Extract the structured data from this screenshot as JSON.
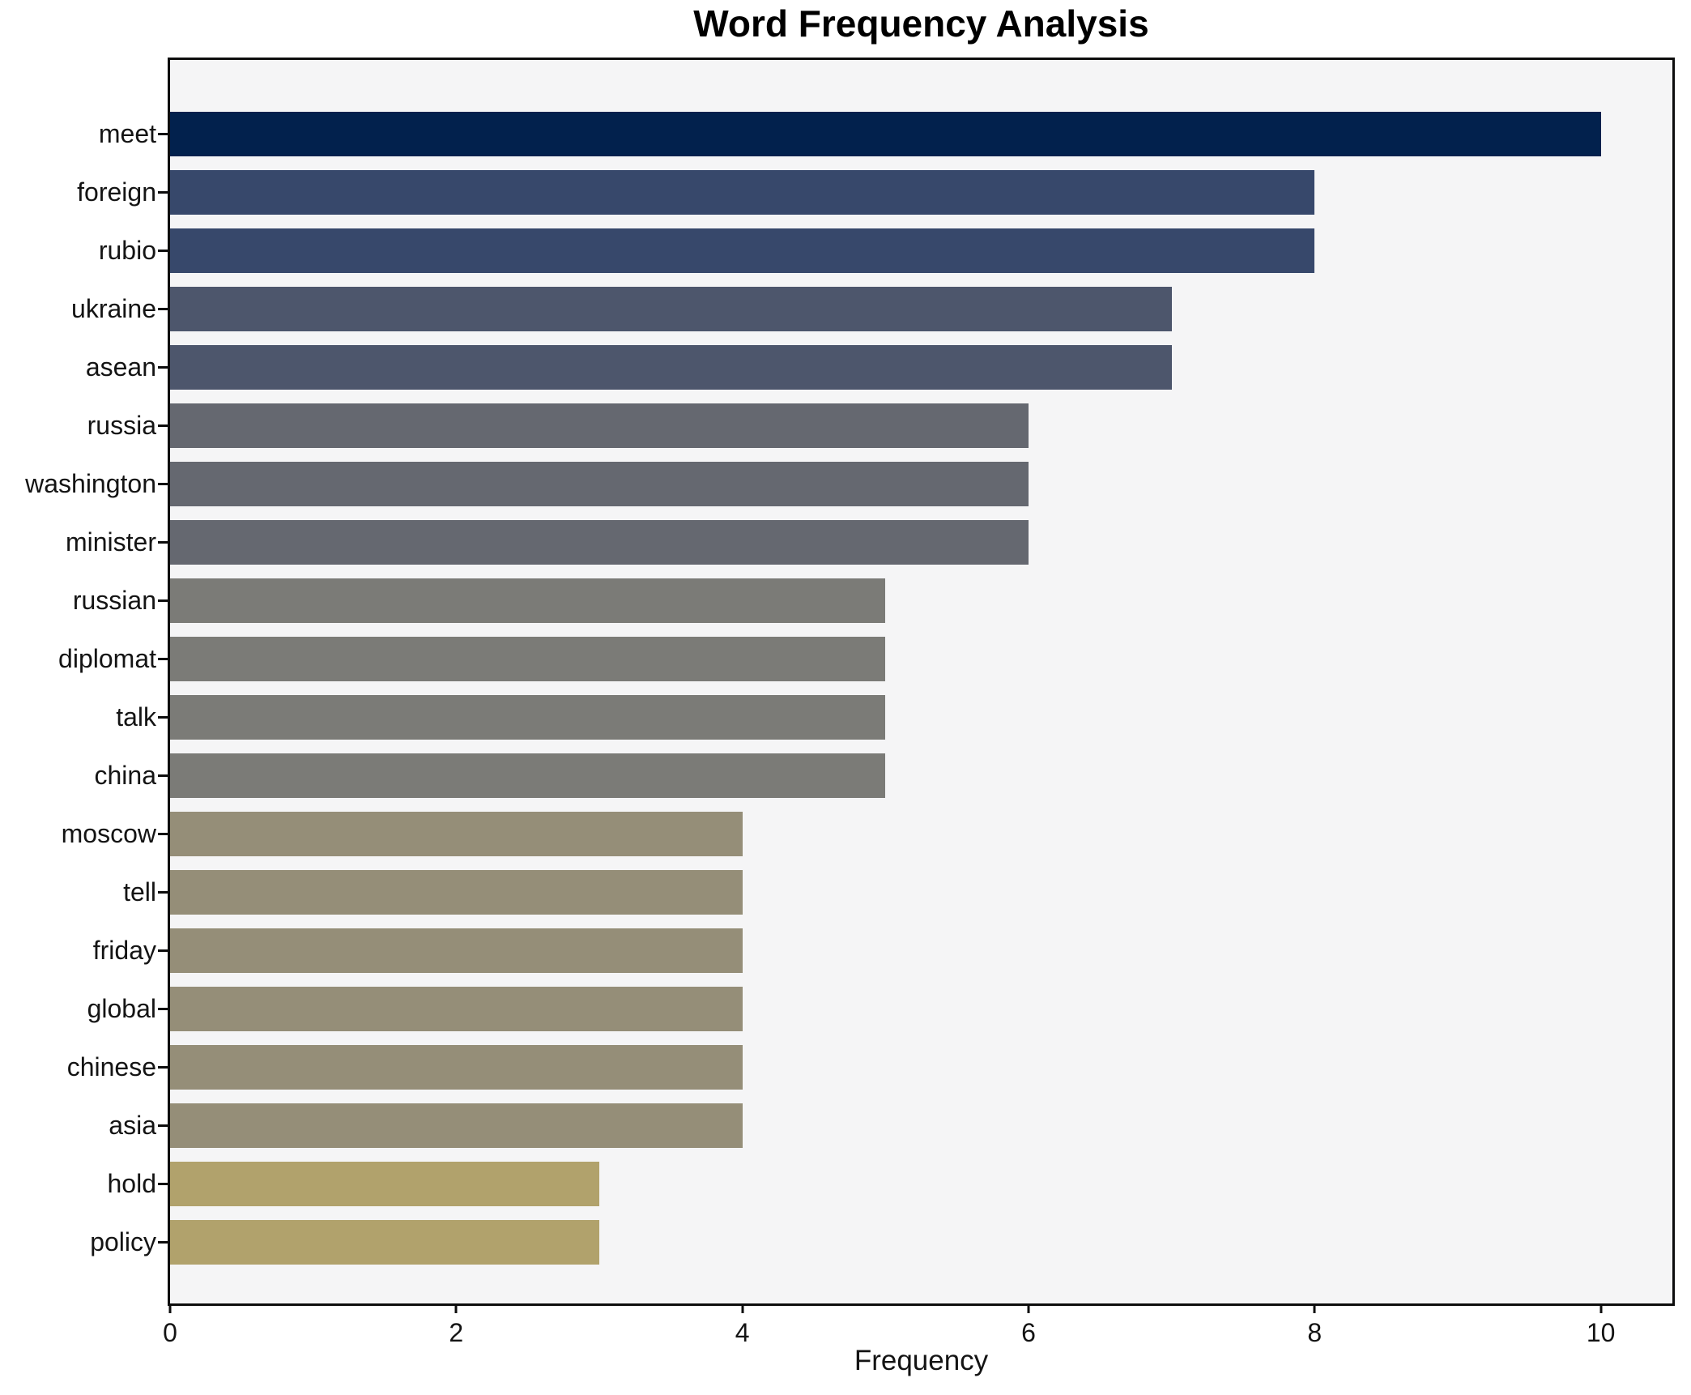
{
  "chart_data": {
    "type": "bar",
    "orientation": "horizontal",
    "title": "Word Frequency Analysis",
    "xlabel": "Frequency",
    "ylabel": "",
    "categories": [
      "meet",
      "foreign",
      "rubio",
      "ukraine",
      "asean",
      "russia",
      "washington",
      "minister",
      "russian",
      "diplomat",
      "talk",
      "china",
      "moscow",
      "tell",
      "friday",
      "global",
      "chinese",
      "asia",
      "hold",
      "policy"
    ],
    "values": [
      10,
      8,
      8,
      7,
      7,
      6,
      6,
      6,
      5,
      5,
      5,
      5,
      4,
      4,
      4,
      4,
      4,
      4,
      3,
      3
    ],
    "bar_colors": [
      "#02214d",
      "#37486b",
      "#37486b",
      "#4d566c",
      "#4d566c",
      "#656870",
      "#656870",
      "#656870",
      "#7b7b77",
      "#7b7b77",
      "#7b7b77",
      "#7b7b77",
      "#958e78",
      "#958e78",
      "#958e78",
      "#958e78",
      "#958e78",
      "#958e78",
      "#b1a26c",
      "#b1a26c"
    ],
    "xlim": [
      0,
      10.5
    ],
    "x_ticks": [
      0,
      2,
      4,
      6,
      8,
      10
    ],
    "grid": false,
    "legend_position": "none",
    "plot_background": "#f5f5f6",
    "figure_background": "#ffffff",
    "spine_color": "#0d0d0d"
  }
}
